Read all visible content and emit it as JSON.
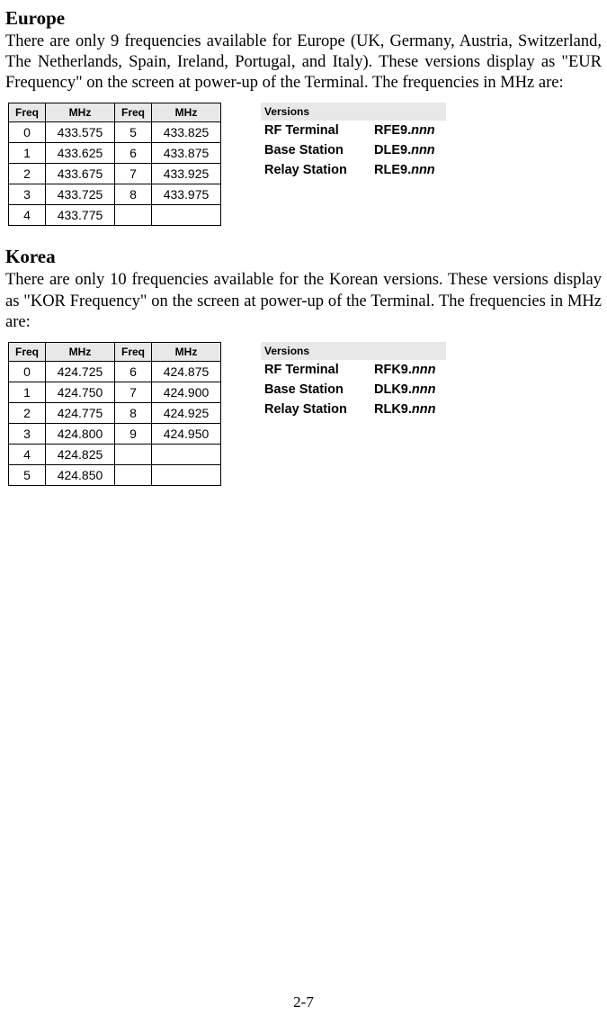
{
  "europe": {
    "heading": "Europe",
    "paragraph": "There are only 9 frequencies available for Europe (UK, Germany, Austria, Switzerland, The Netherlands, Spain, Ireland, Portugal, and Italy). These versions display as \"EUR Frequency\" on the screen at power-up of the Terminal. The frequencies in MHz are:",
    "freq_header": {
      "c1": "Freq",
      "c2": "MHz",
      "c3": "Freq",
      "c4": "MHz"
    },
    "rows": [
      {
        "f1": "0",
        "m1": "433.575",
        "f2": "5",
        "m2": "433.825"
      },
      {
        "f1": "1",
        "m1": "433.625",
        "f2": "6",
        "m2": "433.875"
      },
      {
        "f1": "2",
        "m1": "433.675",
        "f2": "7",
        "m2": "433.925"
      },
      {
        "f1": "3",
        "m1": "433.725",
        "f2": "8",
        "m2": "433.975"
      },
      {
        "f1": "4",
        "m1": "433.775",
        "f2": "",
        "m2": ""
      }
    ],
    "versions_header": "Versions",
    "versions": [
      {
        "name": "RF Terminal",
        "prefix": "RFE9.",
        "suffix": "nnn"
      },
      {
        "name": "Base Station",
        "prefix": "DLE9.",
        "suffix": "nnn"
      },
      {
        "name": "Relay Station",
        "prefix": "RLE9.",
        "suffix": "nnn"
      }
    ]
  },
  "korea": {
    "heading": "Korea",
    "paragraph": "There are only 10 frequencies available for the Korean versions. These versions display as \"KOR Frequency\" on the screen at power-up of the Terminal. The frequencies in MHz are:",
    "freq_header": {
      "c1": "Freq",
      "c2": "MHz",
      "c3": "Freq",
      "c4": "MHz"
    },
    "rows": [
      {
        "f1": "0",
        "m1": "424.725",
        "f2": "6",
        "m2": "424.875"
      },
      {
        "f1": "1",
        "m1": "424.750",
        "f2": "7",
        "m2": "424.900"
      },
      {
        "f1": "2",
        "m1": "424.775",
        "f2": "8",
        "m2": "424.925"
      },
      {
        "f1": "3",
        "m1": "424.800",
        "f2": "9",
        "m2": "424.950"
      },
      {
        "f1": "4",
        "m1": "424.825",
        "f2": "",
        "m2": ""
      },
      {
        "f1": "5",
        "m1": "424.850",
        "f2": "",
        "m2": ""
      }
    ],
    "versions_header": "Versions",
    "versions": [
      {
        "name": "RF Terminal",
        "prefix": "RFK9.",
        "suffix": "nnn"
      },
      {
        "name": "Base Station",
        "prefix": "DLK9.",
        "suffix": "nnn"
      },
      {
        "name": "Relay Station",
        "prefix": "RLK9.",
        "suffix": "nnn"
      }
    ]
  },
  "page_number": "2-7",
  "style": {
    "heading_fontsize": 21,
    "body_fontsize": 18.5,
    "table_header_bg": "#e8e8e8",
    "table_border_color": "#000000",
    "page_bg": "#ffffff"
  }
}
